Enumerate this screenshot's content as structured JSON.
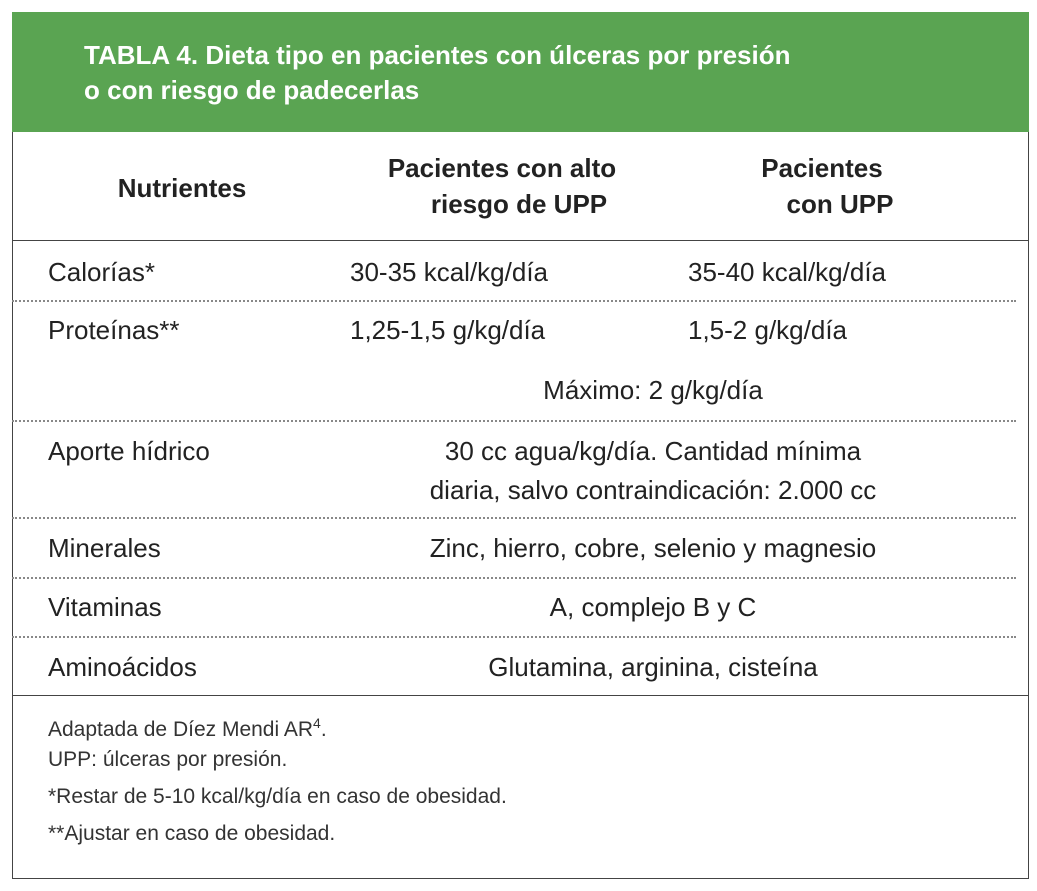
{
  "title": [
    "TABLA 4. Dieta tipo en pacientes con úlceras por presión",
    "o con riesgo de padecerlas"
  ],
  "table": {
    "header": [
      [
        "Nutrientes"
      ],
      [
        "Pacientes con alto",
        "riesgo de UPP"
      ],
      [
        "Pacientes",
        "con UPP"
      ]
    ],
    "rows": [
      {
        "nutrient": "Calorías*",
        "high_risk": "30-35 kcal/kg/día",
        "with_upp": "35-40 kcal/kg/día"
      },
      {
        "nutrient": "Proteínas**",
        "high_risk": "1,25-1,5 g/kg/día",
        "with_upp": "1,5-2 g/kg/día",
        "both": [
          "Máximo: 2 g/kg/día"
        ]
      },
      {
        "nutrient": "Aporte hídrico",
        "both": [
          "30 cc agua/kg/día. Cantidad mínima",
          "diaria, salvo contraindicación: 2.000 cc"
        ]
      },
      {
        "nutrient": "Minerales",
        "both": [
          "Zinc, hierro, cobre, selenio y magnesio"
        ]
      },
      {
        "nutrient": "Vitaminas",
        "both": [
          "A, complejo B y C"
        ]
      },
      {
        "nutrient": "Aminoácidos",
        "both": [
          "Glutamina, arginina, cisteína"
        ]
      }
    ]
  },
  "notes": [
    {
      "text": "Adaptada de Díez Mendi AR",
      "sup": "4",
      "end": "."
    },
    {
      "text": "UPP: úlceras por presión."
    },
    {
      "text": "*Restar de 5-10 kcal/kg/día en caso de obesidad."
    },
    {
      "text": "**Ajustar en caso de obesidad."
    }
  ]
}
